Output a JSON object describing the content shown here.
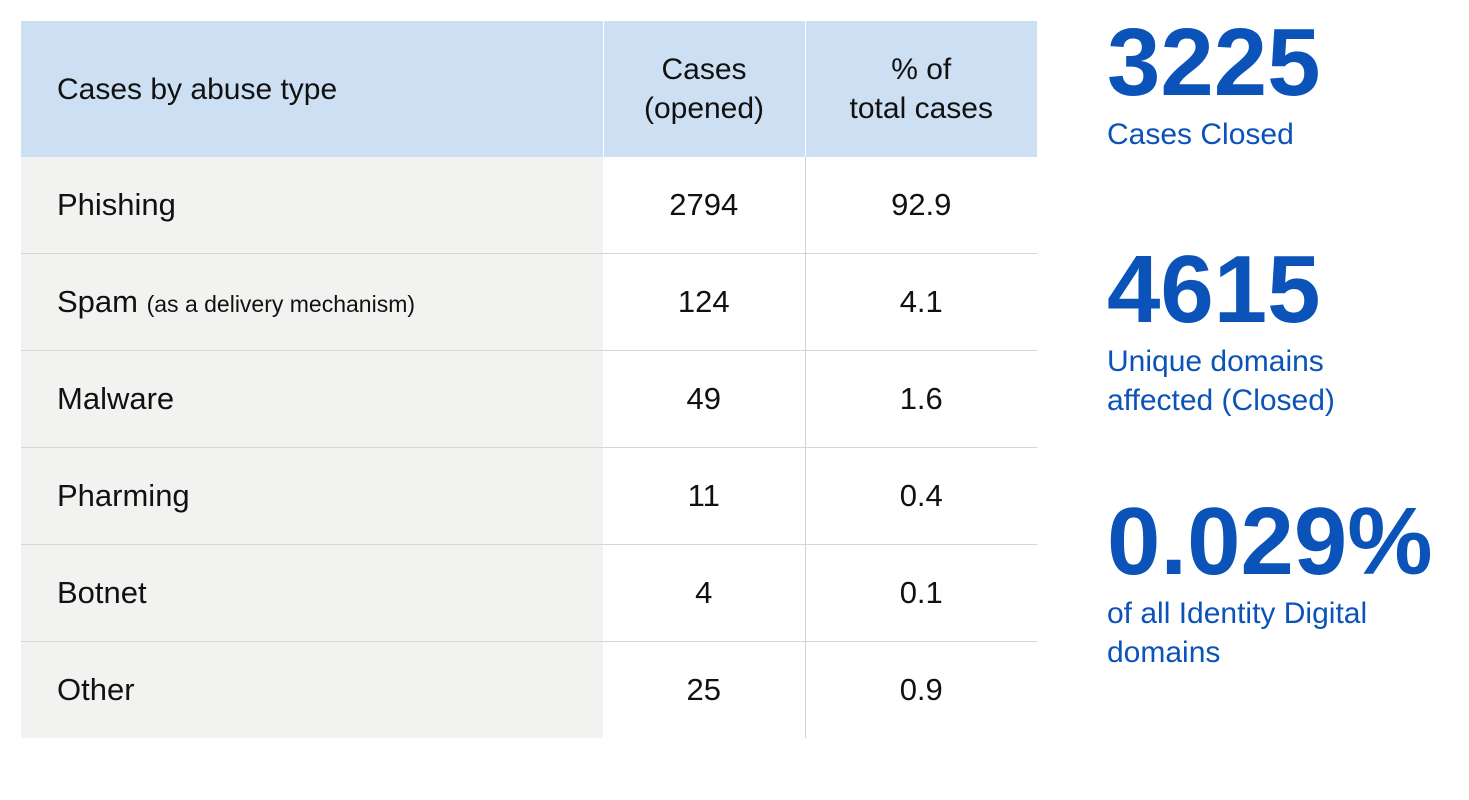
{
  "table": {
    "headers": {
      "type": "Cases by abuse type",
      "cases_line1": "Cases",
      "cases_line2": "(opened)",
      "percent_line1": "% of",
      "percent_line2": "total cases"
    },
    "rows": [
      {
        "type": "Phishing",
        "note": "",
        "cases": "2794",
        "percent": "92.9"
      },
      {
        "type": "Spam",
        "note": "(as a delivery mechanism)",
        "cases": "124",
        "percent": "4.1"
      },
      {
        "type": "Malware",
        "note": "",
        "cases": "49",
        "percent": "1.6"
      },
      {
        "type": "Pharming",
        "note": "",
        "cases": "11",
        "percent": "0.4"
      },
      {
        "type": "Botnet",
        "note": "",
        "cases": "4",
        "percent": "0.1"
      },
      {
        "type": "Other",
        "note": "",
        "cases": "25",
        "percent": "0.9"
      }
    ]
  },
  "stats": [
    {
      "value": "3225",
      "label_line1": "Cases Closed",
      "label_line2": ""
    },
    {
      "value": "4615",
      "label_line1": "Unique domains",
      "label_line2": "affected (Closed)"
    },
    {
      "value": "0.029%",
      "label_line1": "of all Identity Digital",
      "label_line2": "domains"
    }
  ],
  "colors": {
    "header_background": "#cddff2",
    "type_column_background": "#f2f2f1",
    "accent_blue": "#0b53b8"
  }
}
